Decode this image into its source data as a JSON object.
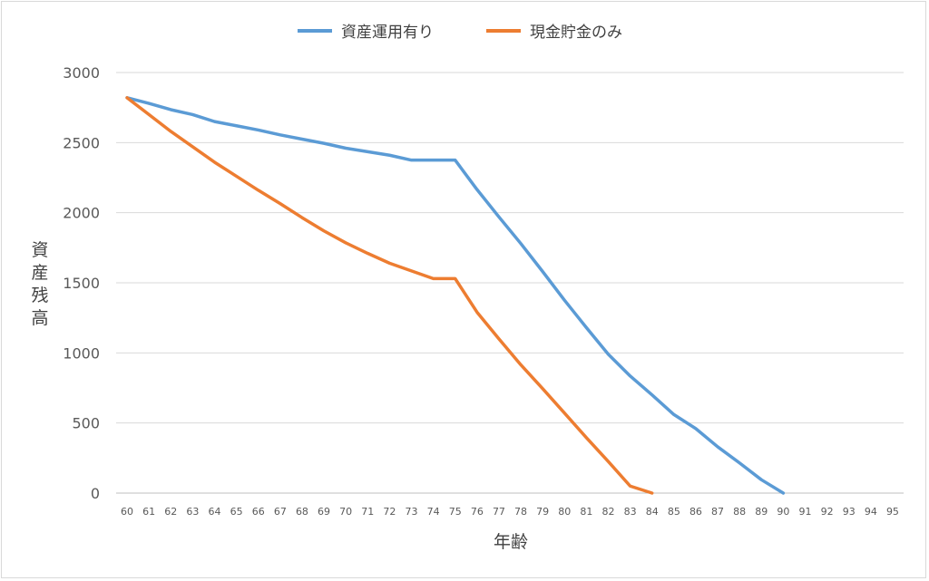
{
  "chart_data": {
    "type": "line",
    "title": "",
    "xlabel": "年齢",
    "ylabel": "資産残高",
    "x": [
      60,
      61,
      62,
      63,
      64,
      65,
      66,
      67,
      68,
      69,
      70,
      71,
      72,
      73,
      74,
      75,
      76,
      77,
      78,
      79,
      80,
      81,
      82,
      83,
      84,
      85,
      86,
      87,
      88,
      89,
      90,
      91,
      92,
      93,
      94,
      95
    ],
    "ylim": [
      0,
      3000
    ],
    "yticks": [
      0,
      500,
      1000,
      1500,
      2000,
      2500,
      3000
    ],
    "grid": true,
    "legend_position": "top",
    "series": [
      {
        "name": "資産運用有り",
        "color": "#5b9bd5",
        "values": [
          2820,
          2780,
          2735,
          2700,
          2650,
          2620,
          2590,
          2555,
          2525,
          2495,
          2460,
          2435,
          2410,
          2375,
          2375,
          2375,
          2165,
          1970,
          1780,
          1580,
          1375,
          1180,
          990,
          835,
          700,
          560,
          460,
          330,
          215,
          95,
          0,
          null,
          null,
          null,
          null,
          null
        ]
      },
      {
        "name": "現金貯金のみ",
        "color": "#ed7d31",
        "values": [
          2820,
          2700,
          2580,
          2470,
          2360,
          2260,
          2160,
          2065,
          1965,
          1870,
          1785,
          1710,
          1640,
          1585,
          1530,
          1530,
          1290,
          1100,
          915,
          745,
          570,
          395,
          225,
          50,
          0,
          null,
          null,
          null,
          null,
          null,
          null,
          null,
          null,
          null,
          null,
          null
        ]
      }
    ]
  }
}
